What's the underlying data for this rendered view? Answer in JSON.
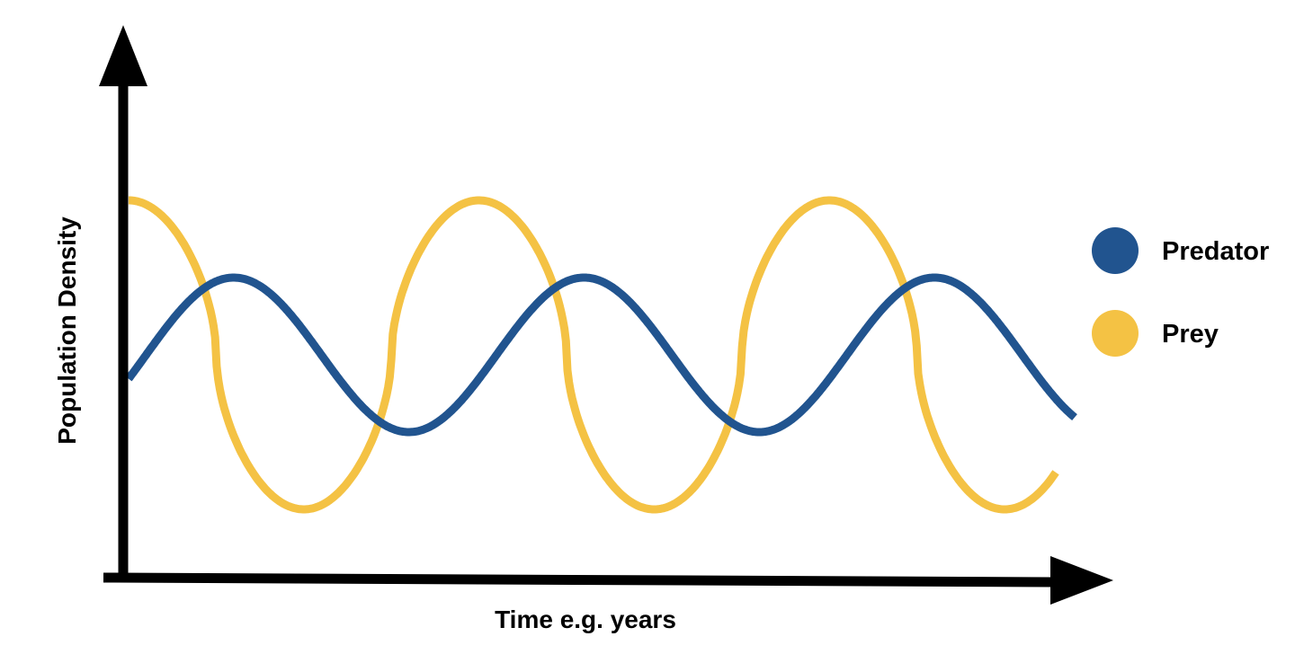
{
  "chart_data": {
    "type": "line",
    "title": "",
    "xlabel": "Time e.g. years",
    "ylabel": "Population Density",
    "xlim": [
      0,
      1.0
    ],
    "ylim": [
      0,
      1.0
    ],
    "grid": false,
    "axis_ticks": false,
    "legend_position": "right",
    "series": [
      {
        "name": "Predator",
        "color": "#21548F",
        "amplitude": 0.2,
        "baseline": 0.5,
        "cycles": 2.7,
        "phase_shift": 0.3
      },
      {
        "name": "Prey",
        "color": "#F4C244",
        "amplitude": 0.4,
        "baseline": 0.5,
        "cycles": 2.7,
        "phase_shift": 0.0
      }
    ]
  }
}
